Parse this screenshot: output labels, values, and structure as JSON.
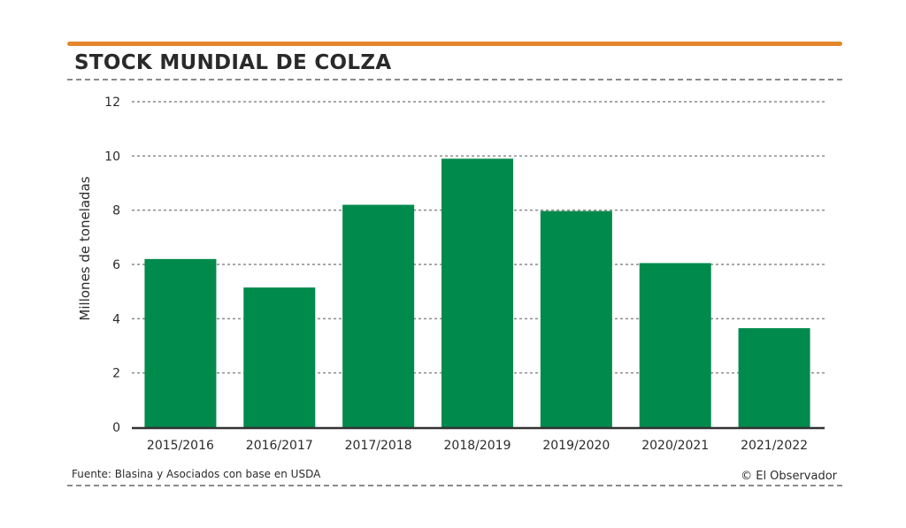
{
  "header": {
    "title": "STOCK MUNDIAL DE COLZA"
  },
  "footer": {
    "source": "Fuente: Blasina y Asociados con base en USDA",
    "credit": "© El Observador"
  },
  "colors": {
    "accent_rule": "#e3862b",
    "bar": "#008a4c",
    "grid": "#8a8a8a",
    "axis": "#333333"
  },
  "chart_data": {
    "type": "bar",
    "title": "STOCK MUNDIAL DE COLZA",
    "xlabel": "",
    "ylabel": "Millones de toneladas",
    "categories": [
      "2015/2016",
      "2016/2017",
      "2017/2018",
      "2018/2019",
      "2019/2020",
      "2020/2021",
      "2021/2022"
    ],
    "values": [
      6.2,
      5.15,
      8.2,
      9.9,
      7.97,
      6.05,
      3.65
    ],
    "ylim": [
      0,
      12
    ],
    "yticks": [
      0,
      2,
      4,
      6,
      8,
      10,
      12
    ],
    "grid": true,
    "legend": "none"
  }
}
